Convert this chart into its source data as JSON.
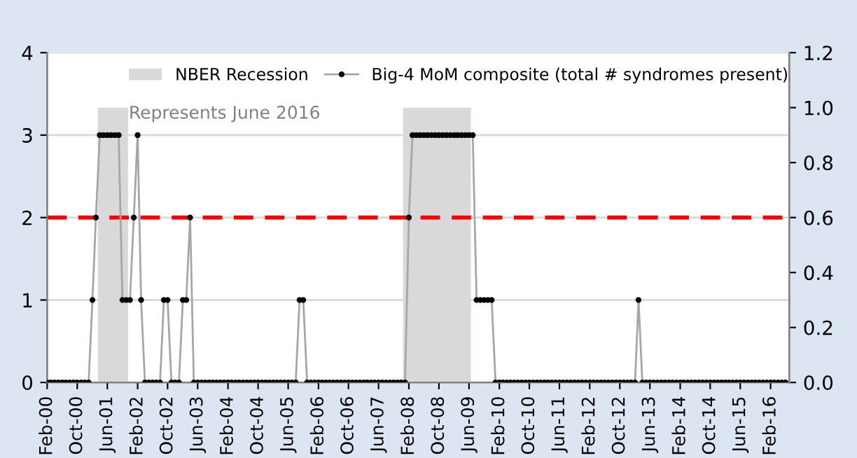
{
  "chart_data": {
    "type": "line",
    "annotations": [
      {
        "text": "Represents June 2016"
      }
    ],
    "x": [
      "2000-02",
      "2000-03",
      "2000-04",
      "2000-05",
      "2000-06",
      "2000-07",
      "2000-08",
      "2000-09",
      "2000-10",
      "2000-11",
      "2000-12",
      "2001-01",
      "2001-02",
      "2001-03",
      "2001-04",
      "2001-05",
      "2001-06",
      "2001-07",
      "2001-08",
      "2001-09",
      "2001-10",
      "2001-11",
      "2001-12",
      "2002-01",
      "2002-02",
      "2002-03",
      "2002-04",
      "2002-05",
      "2002-06",
      "2002-07",
      "2002-08",
      "2002-09",
      "2002-10",
      "2002-11",
      "2002-12",
      "2003-01",
      "2003-02",
      "2003-03",
      "2003-04",
      "2003-05",
      "2003-06",
      "2003-07",
      "2003-08",
      "2003-09",
      "2003-10",
      "2003-11",
      "2003-12",
      "2004-01",
      "2004-02",
      "2004-03",
      "2004-04",
      "2004-05",
      "2004-06",
      "2004-07",
      "2004-08",
      "2004-09",
      "2004-10",
      "2004-11",
      "2004-12",
      "2005-01",
      "2005-02",
      "2005-03",
      "2005-04",
      "2005-05",
      "2005-06",
      "2005-07",
      "2005-08",
      "2005-09",
      "2005-10",
      "2005-11",
      "2005-12",
      "2006-01",
      "2006-02",
      "2006-03",
      "2006-04",
      "2006-05",
      "2006-06",
      "2006-07",
      "2006-08",
      "2006-09",
      "2006-10",
      "2006-11",
      "2006-12",
      "2007-01",
      "2007-02",
      "2007-03",
      "2007-04",
      "2007-05",
      "2007-06",
      "2007-07",
      "2007-08",
      "2007-09",
      "2007-10",
      "2007-11",
      "2007-12",
      "2008-01",
      "2008-02",
      "2008-03",
      "2008-04",
      "2008-05",
      "2008-06",
      "2008-07",
      "2008-08",
      "2008-09",
      "2008-10",
      "2008-11",
      "2008-12",
      "2009-01",
      "2009-02",
      "2009-03",
      "2009-04",
      "2009-05",
      "2009-06",
      "2009-07",
      "2009-08",
      "2009-09",
      "2009-10",
      "2009-11",
      "2009-12",
      "2010-01",
      "2010-02",
      "2010-03",
      "2010-04",
      "2010-05",
      "2010-06",
      "2010-07",
      "2010-08",
      "2010-09",
      "2010-10",
      "2010-11",
      "2010-12",
      "2011-01",
      "2011-02",
      "2011-03",
      "2011-04",
      "2011-05",
      "2011-06",
      "2011-07",
      "2011-08",
      "2011-09",
      "2011-10",
      "2011-11",
      "2011-12",
      "2012-01",
      "2012-02",
      "2012-03",
      "2012-04",
      "2012-05",
      "2012-06",
      "2012-07",
      "2012-08",
      "2012-09",
      "2012-10",
      "2012-11",
      "2012-12",
      "2013-01",
      "2013-02",
      "2013-03",
      "2013-04",
      "2013-05",
      "2013-06",
      "2013-07",
      "2013-08",
      "2013-09",
      "2013-10",
      "2013-11",
      "2013-12",
      "2014-01",
      "2014-02",
      "2014-03",
      "2014-04",
      "2014-05",
      "2014-06",
      "2014-07",
      "2014-08",
      "2014-09",
      "2014-10",
      "2014-11",
      "2014-12",
      "2015-01",
      "2015-02",
      "2015-03",
      "2015-04",
      "2015-05",
      "2015-06",
      "2015-07",
      "2015-08",
      "2015-09",
      "2015-10",
      "2015-11",
      "2015-12",
      "2016-01",
      "2016-02",
      "2016-03",
      "2016-04",
      "2016-05",
      "2016-06"
    ],
    "series": [
      {
        "name": "NBER Recession",
        "type": "area",
        "axis": "y2",
        "color": "#d9d9d9",
        "x": [
          "2001-03-16",
          "2001-11-16",
          "2005-01",
          "2007-12-16",
          "2009-06-16"
        ],
        "values": [
          1,
          1,
          null,
          1,
          1
        ]
      },
      {
        "name": "Big-4 MoM composite (total # syndromes present)",
        "color": "#a6a6a6",
        "marker": "circle",
        "line_style": "solid",
        "values": [
          0,
          0,
          0,
          0,
          0,
          0,
          0,
          0,
          0,
          0,
          0,
          0,
          1,
          2,
          3,
          3,
          3,
          3,
          3,
          3,
          1,
          1,
          1,
          2,
          3,
          1,
          0,
          0,
          0,
          0,
          0,
          1,
          1,
          0,
          0,
          0,
          1,
          1,
          2,
          0,
          0,
          0,
          0,
          0,
          0,
          0,
          0,
          0,
          0,
          0,
          0,
          0,
          0,
          0,
          0,
          0,
          0,
          0,
          0,
          0,
          0,
          0,
          0,
          0,
          0,
          0,
          0,
          1,
          1,
          0,
          0,
          0,
          0,
          0,
          0,
          0,
          0,
          0,
          0,
          0,
          0,
          0,
          0,
          0,
          0,
          0,
          0,
          0,
          0,
          0,
          0,
          0,
          0,
          0,
          0,
          0,
          2,
          3,
          3,
          3,
          3,
          3,
          3,
          3,
          3,
          3,
          3,
          3,
          3,
          3,
          3,
          3,
          3,
          3,
          1,
          1,
          1,
          1,
          1,
          0,
          0,
          0,
          0,
          0,
          0,
          0,
          0,
          0,
          0,
          0,
          0,
          0,
          0,
          0,
          0,
          0,
          0,
          0,
          0,
          0,
          0,
          0,
          0,
          0,
          0,
          0,
          0,
          0,
          0,
          0,
          0,
          0,
          0,
          0,
          0,
          0,
          0,
          1,
          0,
          0,
          0,
          0,
          0,
          0,
          0,
          0,
          0,
          0,
          0,
          0,
          0,
          0,
          0,
          0,
          0,
          0,
          0,
          0,
          0,
          0,
          0,
          0,
          0,
          0,
          0,
          0,
          0,
          0,
          0,
          0,
          0,
          0,
          0,
          0,
          0,
          0,
          0
        ]
      }
    ],
    "xlim": [
      "2000-02",
      "2016-07"
    ],
    "xticks": [
      {
        "value": "2000-02",
        "label": "Feb-00"
      },
      {
        "value": "2000-10",
        "label": "Oct-00"
      },
      {
        "value": "2001-06",
        "label": "Jun-01"
      },
      {
        "value": "2002-02",
        "label": "Feb-02"
      },
      {
        "value": "2002-10",
        "label": "Oct-02"
      },
      {
        "value": "2003-06",
        "label": "Jun-03"
      },
      {
        "value": "2004-02",
        "label": "Feb-04"
      },
      {
        "value": "2004-10",
        "label": "Oct-04"
      },
      {
        "value": "2005-06",
        "label": "Jun-05"
      },
      {
        "value": "2006-02",
        "label": "Feb-06"
      },
      {
        "value": "2006-10",
        "label": "Oct-06"
      },
      {
        "value": "2007-06",
        "label": "Jun-07"
      },
      {
        "value": "2008-02",
        "label": "Feb-08"
      },
      {
        "value": "2008-10",
        "label": "Oct-08"
      },
      {
        "value": "2009-06",
        "label": "Jun-09"
      },
      {
        "value": "2010-02",
        "label": "Feb-10"
      },
      {
        "value": "2010-10",
        "label": "Oct-10"
      },
      {
        "value": "2011-06",
        "label": "Jun-11"
      },
      {
        "value": "2012-02",
        "label": "Feb-12"
      },
      {
        "value": "2012-10",
        "label": "Oct-12"
      },
      {
        "value": "2013-06",
        "label": "Jun-13"
      },
      {
        "value": "2014-02",
        "label": "Feb-14"
      },
      {
        "value": "2014-10",
        "label": "Oct-14"
      },
      {
        "value": "2015-06",
        "label": "Jun-15"
      },
      {
        "value": "2016-02",
        "label": "Feb-16"
      }
    ],
    "ylim": [
      0,
      4
    ],
    "yticks": [
      0,
      1,
      2,
      3,
      4
    ],
    "y2lim": [
      0,
      1.2
    ],
    "y2ticks": [
      {
        "value": 0,
        "label": "0.0"
      },
      {
        "value": 0.2,
        "label": "0.2"
      },
      {
        "value": 0.4,
        "label": "0.4"
      },
      {
        "value": 0.6,
        "label": "0.6"
      },
      {
        "value": 0.8,
        "label": "0.8"
      },
      {
        "value": 1,
        "label": "1.0"
      },
      {
        "value": 1.2,
        "label": "1.2"
      }
    ],
    "ref_lines": [
      {
        "axis": "y",
        "value": 2,
        "color": "#ff0000",
        "line_style": "dashed"
      }
    ],
    "grid": "y",
    "legend": "top"
  }
}
